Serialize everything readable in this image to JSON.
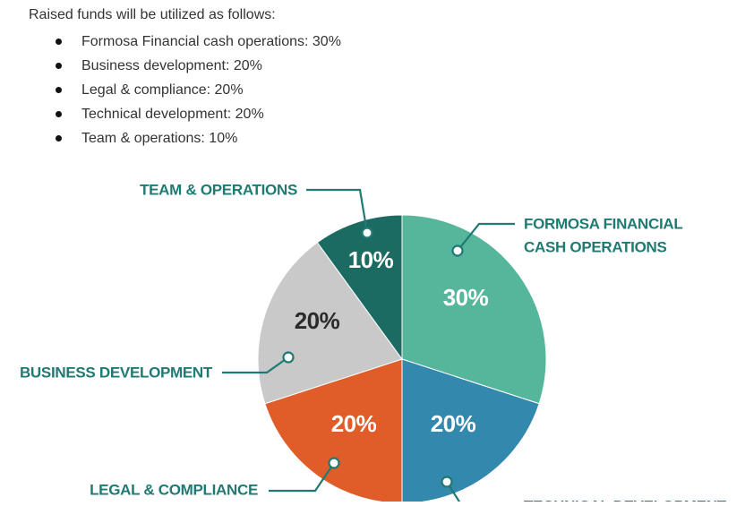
{
  "intro": "Raised funds will be utilized as follows:",
  "uses": [
    "Formosa Financial cash operations: 30%",
    "Business development: 20%",
    "Legal & compliance: 20%",
    "Technical development: 20%",
    "Team & operations: 10%"
  ],
  "chart_data": {
    "type": "pie",
    "title": "",
    "slices": [
      {
        "label": "FORMOSA FINANCIAL CASH OPERATIONS",
        "label_lines": [
          "FORMOSA FINANCIAL",
          "CASH OPERATIONS"
        ],
        "value": 30,
        "value_label": "30%",
        "color": "#56b69b",
        "text_color": "#ffffff"
      },
      {
        "label": "TECHNICAL DEVELOPMENT",
        "label_lines": [
          "TECHNICAL DEVELOPMENT"
        ],
        "value": 20,
        "value_label": "20%",
        "color": "#3388ae",
        "text_color": "#ffffff"
      },
      {
        "label": "LEGAL & COMPLIANCE",
        "label_lines": [
          "LEGAL & COMPLIANCE"
        ],
        "value": 20,
        "value_label": "20%",
        "color": "#e05d29",
        "text_color": "#ffffff"
      },
      {
        "label": "BUSINESS DEVELOPMENT",
        "label_lines": [
          "BUSINESS DEVELOPMENT"
        ],
        "value": 20,
        "value_label": "20%",
        "color": "#c9c9ca",
        "text_color": "#2b2b2b"
      },
      {
        "label": "TEAM & OPERATIONS",
        "label_lines": [
          "TEAM & OPERATIONS"
        ],
        "value": 10,
        "value_label": "10%",
        "color": "#1b6b62",
        "text_color": "#ffffff"
      }
    ],
    "label_color": "#1e7a73",
    "legend": "none"
  }
}
